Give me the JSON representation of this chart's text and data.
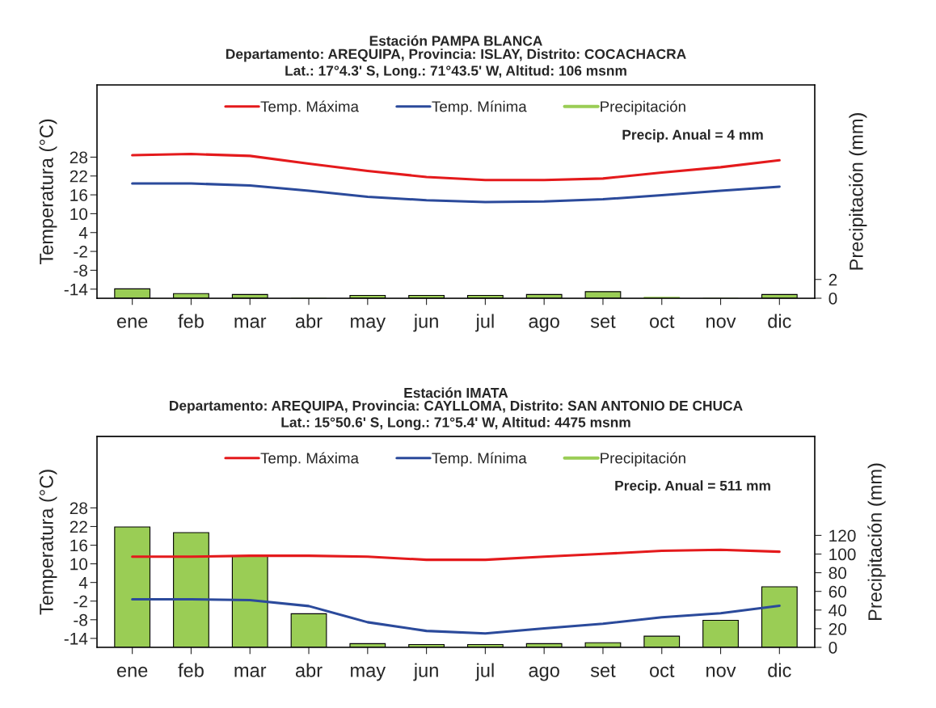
{
  "chart_data": [
    {
      "type": "line",
      "title": "Estación PAMPA BLANCA",
      "subtitle": "Departamento: AREQUIPA, Provincia: ISLAY, Distrito: COCACHACRA\nLat.: 17°4.3' S, Long.: 71°43.5' W, Altitud: 106 msnm",
      "ylabel": "Temperatura (°C)",
      "y2label": "Precipitación (mm)",
      "categories": [
        "ene",
        "feb",
        "mar",
        "abr",
        "may",
        "jun",
        "jul",
        "ago",
        "set",
        "oct",
        "nov",
        "dic"
      ],
      "series": [
        {
          "name": "Temp. Máxima",
          "color": "#e41a1c",
          "values": [
            28.6,
            29.0,
            28.4,
            25.9,
            23.6,
            21.7,
            20.7,
            20.7,
            21.2,
            23.1,
            24.8,
            27.0
          ]
        },
        {
          "name": "Temp. Mínima",
          "color": "#2b4a9b",
          "values": [
            19.6,
            19.6,
            19.0,
            17.3,
            15.4,
            14.3,
            13.7,
            13.9,
            14.6,
            15.9,
            17.3,
            18.6
          ]
        },
        {
          "name": "Precipitación",
          "type": "bar",
          "axis": "y2",
          "color": "#9acd55",
          "values": [
            1.0,
            0.5,
            0.4,
            0.0,
            0.3,
            0.3,
            0.3,
            0.4,
            0.7,
            0.1,
            0.0,
            0.4
          ]
        }
      ],
      "ylim": [
        -16.9,
        51
      ],
      "yticks": [
        -14,
        -8,
        -2,
        4,
        10,
        16,
        22,
        28
      ],
      "y2lim": [
        0,
        22.7
      ],
      "y2ticks": [
        0,
        2
      ],
      "annotations": [
        "Precip. Anual = 4 mm"
      ],
      "legend": "top",
      "grid": false
    },
    {
      "type": "line",
      "title": "Estación IMATA",
      "subtitle": "Departamento: AREQUIPA, Provincia: CAYLLOMA, Distrito: SAN ANTONIO DE CHUCA\nLat.: 15°50.6' S, Long.: 71°5.4' W, Altitud: 4475 msnm",
      "ylabel": "Temperatura (°C)",
      "y2label": "Precipitación (mm)",
      "categories": [
        "ene",
        "feb",
        "mar",
        "abr",
        "may",
        "jun",
        "jul",
        "ago",
        "set",
        "oct",
        "nov",
        "dic"
      ],
      "series": [
        {
          "name": "Temp. Máxima",
          "color": "#e41a1c",
          "values": [
            12.3,
            12.3,
            12.6,
            12.6,
            12.3,
            11.3,
            11.3,
            12.3,
            13.2,
            14.2,
            14.5,
            13.9
          ]
        },
        {
          "name": "Temp. Mínima",
          "color": "#2b4a9b",
          "values": [
            -1.4,
            -1.4,
            -1.7,
            -3.6,
            -8.8,
            -11.6,
            -12.4,
            -10.8,
            -9.3,
            -7.2,
            -5.9,
            -3.5
          ]
        },
        {
          "name": "Precipitación",
          "type": "bar",
          "axis": "y2",
          "color": "#9acd55",
          "values": [
            129,
            123,
            98,
            36,
            4,
            3,
            3,
            4,
            5,
            12,
            29,
            65
          ]
        }
      ],
      "ylim": [
        -16.9,
        51
      ],
      "yticks": [
        -14,
        -8,
        -2,
        4,
        10,
        16,
        22,
        28
      ],
      "y2lim": [
        0,
        226
      ],
      "y2ticks": [
        0,
        20,
        40,
        60,
        80,
        100,
        120
      ],
      "annotations": [
        "Precip. Anual = 511 mm"
      ],
      "legend": "top",
      "grid": false
    }
  ]
}
